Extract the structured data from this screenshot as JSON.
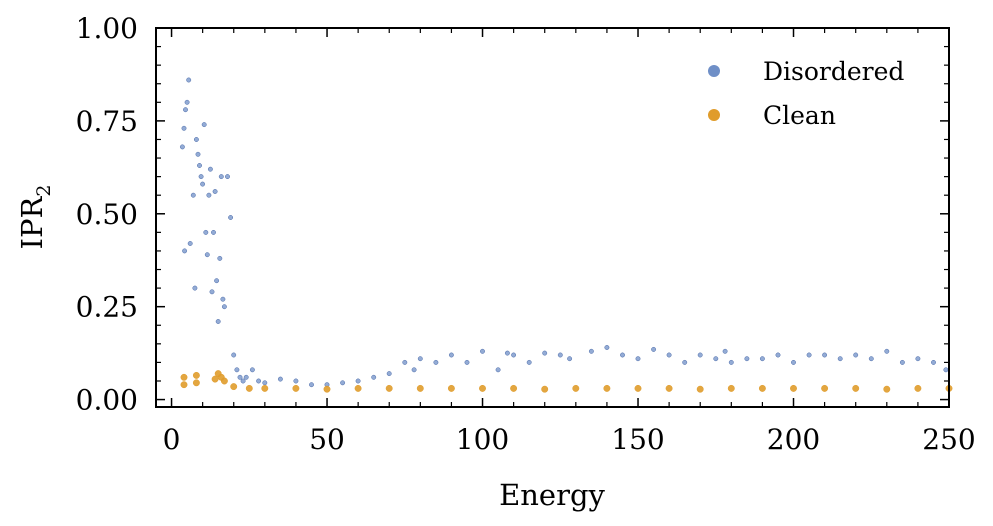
{
  "chart_data": {
    "type": "scatter",
    "title": "",
    "xlabel": "Energy",
    "ylabel": "IPR",
    "ylabel_subscript": "2",
    "xlim": [
      -5,
      250
    ],
    "ylim": [
      -0.02,
      1.0
    ],
    "x_ticks": [
      0,
      50,
      100,
      150,
      200,
      250
    ],
    "x_tick_labels": [
      "0",
      "50",
      "100",
      "150",
      "200",
      "250"
    ],
    "y_ticks": [
      0.0,
      0.25,
      0.5,
      0.75,
      1.0
    ],
    "y_tick_labels": [
      "0.00",
      "0.25",
      "0.50",
      "0.75",
      "1.00"
    ],
    "legend_position": "top-right",
    "grid": false,
    "series": [
      {
        "name": "Disordered",
        "color": "#6f8fc7",
        "description": "High IPR (0.3-0.86) for energies below ~20, rapid decay to ~0.05 by energy 25, then a low baseline (~0.02-0.05) with periodic clusters reaching ~0.1-0.14 roughly every 6 units of energy up to 250.",
        "x": [
          3.5,
          4,
          4.2,
          4.5,
          5,
          5.5,
          6,
          7,
          7.5,
          8,
          8.5,
          9,
          9.5,
          10,
          10.5,
          11,
          11.5,
          12,
          12.5,
          13,
          13.5,
          14,
          14.5,
          15,
          15.5,
          16,
          16.5,
          17,
          18,
          19,
          20,
          21,
          22,
          23,
          24,
          26,
          28,
          30,
          35,
          40,
          45,
          50,
          55,
          60,
          65,
          70,
          75,
          78,
          80,
          85,
          90,
          95,
          100,
          105,
          108,
          110,
          115,
          120,
          125,
          128,
          135,
          140,
          145,
          150,
          155,
          160,
          165,
          170,
          175,
          178,
          180,
          185,
          190,
          195,
          200,
          205,
          210,
          215,
          220,
          225,
          230,
          235,
          240,
          245,
          249
        ],
        "y": [
          0.68,
          0.73,
          0.4,
          0.78,
          0.8,
          0.86,
          0.42,
          0.55,
          0.3,
          0.7,
          0.66,
          0.63,
          0.6,
          0.58,
          0.74,
          0.45,
          0.39,
          0.55,
          0.62,
          0.29,
          0.45,
          0.56,
          0.32,
          0.21,
          0.38,
          0.6,
          0.27,
          0.25,
          0.6,
          0.49,
          0.12,
          0.08,
          0.06,
          0.05,
          0.06,
          0.08,
          0.05,
          0.045,
          0.055,
          0.05,
          0.04,
          0.04,
          0.045,
          0.05,
          0.06,
          0.07,
          0.1,
          0.08,
          0.11,
          0.1,
          0.12,
          0.1,
          0.13,
          0.08,
          0.125,
          0.12,
          0.1,
          0.125,
          0.12,
          0.11,
          0.13,
          0.14,
          0.12,
          0.11,
          0.135,
          0.12,
          0.1,
          0.12,
          0.11,
          0.13,
          0.1,
          0.11,
          0.11,
          0.12,
          0.1,
          0.12,
          0.12,
          0.11,
          0.12,
          0.11,
          0.13,
          0.1,
          0.11,
          0.1,
          0.08
        ]
      },
      {
        "name": "Clean",
        "color": "#e09c2b",
        "description": "Small cluster around IPR 0.04-0.07 near energies 4, 8 and 14-17, then a flat band at ~0.03 from energy 20 to 250.",
        "x": [
          4,
          4,
          8,
          8,
          14,
          15,
          16,
          17,
          20,
          25,
          30,
          40,
          50,
          60,
          70,
          80,
          90,
          100,
          110,
          120,
          130,
          140,
          150,
          160,
          170,
          180,
          190,
          200,
          210,
          220,
          230,
          240,
          250
        ],
        "y": [
          0.06,
          0.04,
          0.065,
          0.045,
          0.055,
          0.07,
          0.06,
          0.05,
          0.035,
          0.03,
          0.03,
          0.03,
          0.028,
          0.03,
          0.03,
          0.03,
          0.03,
          0.03,
          0.03,
          0.028,
          0.03,
          0.03,
          0.03,
          0.03,
          0.028,
          0.03,
          0.03,
          0.03,
          0.03,
          0.03,
          0.028,
          0.03,
          0.03
        ]
      }
    ]
  }
}
